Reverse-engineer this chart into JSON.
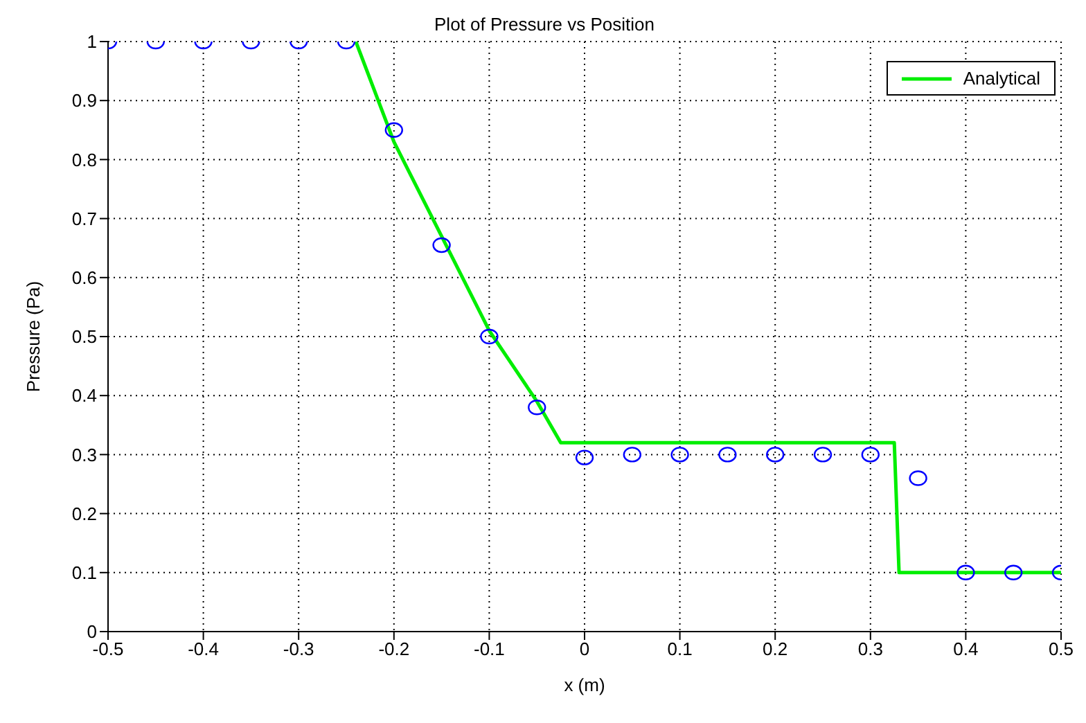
{
  "chart_data": {
    "type": "line",
    "title": "Plot of Pressure vs Position",
    "xlabel": "x (m)",
    "ylabel": "Pressure (Pa)",
    "series": [
      {
        "name": "Analytical",
        "type": "line",
        "color": "#00ee00",
        "marker": "none",
        "line_style": "solid",
        "x": [
          -0.24,
          -0.2,
          -0.15,
          -0.1,
          -0.05,
          -0.025,
          0.325,
          0.33,
          0.5
        ],
        "values": [
          1,
          0.83,
          0.67,
          0.51,
          0.39,
          0.32,
          0.32,
          0.1,
          0.1
        ]
      },
      {
        "type": "scatter",
        "color": "#0000ff",
        "marker": "circle",
        "x": [
          -0.5,
          -0.45,
          -0.4,
          -0.35,
          -0.3,
          -0.25,
          -0.2,
          -0.15,
          -0.1,
          -0.05,
          0,
          0.05,
          0.1,
          0.15,
          0.2,
          0.25,
          0.3,
          0.35,
          0.4,
          0.45,
          0.5
        ],
        "values": [
          1,
          1,
          1,
          1,
          1,
          1,
          0.85,
          0.655,
          0.5,
          0.38,
          0.295,
          0.3,
          0.3,
          0.3,
          0.3,
          0.3,
          0.3,
          0.26,
          0.1,
          0.1,
          0.1
        ]
      }
    ],
    "xlim": [
      -0.5,
      0.5
    ],
    "xticks": [
      -0.5,
      -0.4,
      -0.3,
      -0.2,
      -0.1,
      0,
      0.1,
      0.2,
      0.3,
      0.4,
      0.5
    ],
    "ylim": [
      0,
      1
    ],
    "yticks": [
      0,
      0.1,
      0.2,
      0.3,
      0.4,
      0.5,
      0.6,
      0.7,
      0.8,
      0.9,
      1
    ],
    "grid": true,
    "legend": "top right"
  }
}
